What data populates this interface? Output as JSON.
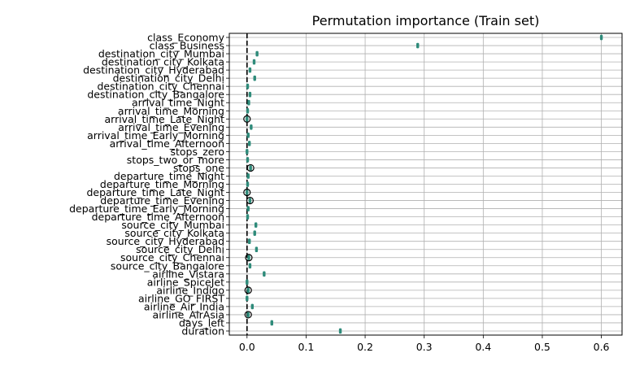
{
  "chart_data": {
    "type": "box",
    "title": "Permutation importance (Train set)",
    "xlabel": "",
    "ylabel": "",
    "xlim": [
      -0.03,
      0.635
    ],
    "xticks": [
      0.0,
      0.1,
      0.2,
      0.3,
      0.4,
      0.5,
      0.6
    ],
    "xtick_labels": [
      "0.0",
      "0.1",
      "0.2",
      "0.3",
      "0.4",
      "0.5",
      "0.6"
    ],
    "grid": true,
    "reference_line_x": 0,
    "categories": [
      "class_Economy",
      "class_Business",
      "destination_city_Mumbai",
      "destination_city_Kolkata",
      "destination_city_Hyderabad",
      "destination_city_Delhi",
      "destination_city_Chennai",
      "destination_city_Bangalore",
      "arrival_time_Night",
      "arrival_time_Morning",
      "arrival_time_Late_Night",
      "arrival_time_Evening",
      "arrival_time_Early_Morning",
      "arrival_time_Afternoon",
      "stops_zero",
      "stops_two_or_more",
      "stops_one",
      "departure_time_Night",
      "departure_time_Morning",
      "departure_time_Late_Night",
      "departure_time_Evening",
      "departure_time_Early_Morning",
      "departure_time_Afternoon",
      "source_city_Mumbai",
      "source_city_Kolkata",
      "source_city_Hyderabad",
      "source_city_Delhi",
      "source_city_Chennai",
      "source_city_Bangalore",
      "airline_Vistara",
      "airline_SpiceJet",
      "airline_Indigo",
      "airline_GO_FIRST",
      "airline_Air_India",
      "airline_AirAsia",
      "days_left",
      "duration"
    ],
    "values": [
      0.6,
      0.289,
      0.017,
      0.012,
      0.005,
      0.013,
      0.001,
      0.005,
      0.003,
      0.001,
      0.0,
      0.007,
      0.002,
      0.004,
      0.0,
      0.001,
      0.006,
      0.002,
      0.001,
      0.0,
      0.005,
      0.002,
      0.001,
      0.015,
      0.013,
      0.004,
      0.016,
      0.003,
      0.005,
      0.029,
      0.0,
      0.002,
      0.0,
      0.009,
      0.002,
      0.042,
      0.158
    ],
    "outliers": [
      null,
      null,
      null,
      null,
      null,
      null,
      null,
      null,
      null,
      null,
      0.0,
      null,
      null,
      null,
      null,
      null,
      0.006,
      null,
      null,
      0.0,
      0.005,
      null,
      null,
      null,
      null,
      null,
      null,
      0.003,
      null,
      null,
      null,
      0.002,
      null,
      null,
      0.002,
      null,
      null
    ],
    "box_color": "#2e8b7a",
    "outlier_edge_color": "#000000",
    "reference_line_color": "#000000",
    "grid_color": "#b0b0b0"
  }
}
